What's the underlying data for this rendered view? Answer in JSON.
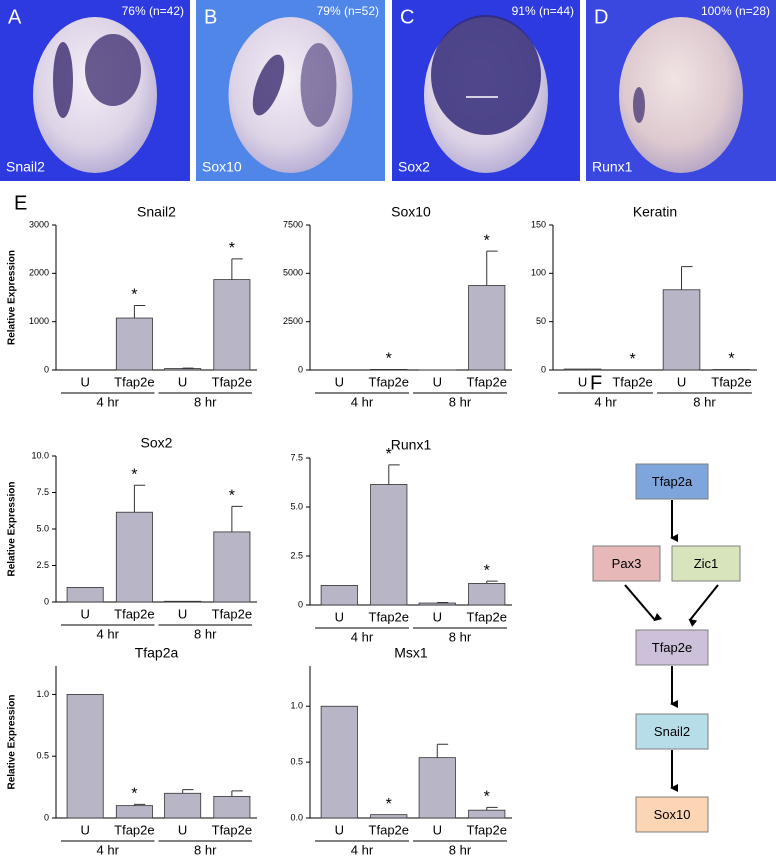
{
  "panels": [
    {
      "letter": "A",
      "stat": "76% (n=42)",
      "marker": "Snail2"
    },
    {
      "letter": "B",
      "stat": "79% (n=52)",
      "marker": "Sox10"
    },
    {
      "letter": "C",
      "stat": "91% (n=44)",
      "marker": "Sox2"
    },
    {
      "letter": "D",
      "stat": "100% (n=28)",
      "marker": "Runx1"
    }
  ],
  "chart_panel_letter": "E",
  "chart_data": [
    {
      "type": "bar",
      "title": "Snail2",
      "ylabel": "Relative Expression",
      "categories": [
        "U",
        "Tfap2e",
        "U",
        "Tfap2e"
      ],
      "groups": [
        "4 hr",
        "8 hr"
      ],
      "values": [
        0,
        1075,
        30,
        1870
      ],
      "errors": [
        null,
        260,
        10,
        430
      ],
      "markers": [
        null,
        "*",
        null,
        "*"
      ],
      "color": "#b8b6c6",
      "ylim": [
        0,
        3000
      ],
      "yticks": [
        0,
        1000,
        2000,
        3000
      ]
    },
    {
      "type": "bar",
      "title": "Sox10",
      "categories": [
        "U",
        "Tfap2e",
        "U",
        "Tfap2e"
      ],
      "groups": [
        "4 hr",
        "8 hr"
      ],
      "values": [
        0,
        30,
        5,
        4370
      ],
      "errors": [
        null,
        null,
        null,
        1780
      ],
      "markers": [
        null,
        "*",
        null,
        "*"
      ],
      "color": "#b8b6c6",
      "ylim": [
        0,
        7500
      ],
      "yticks": [
        0,
        2500,
        5000,
        7500
      ]
    },
    {
      "type": "bar",
      "title": "Keratin",
      "categories": [
        "U",
        "Tfap2e",
        "U",
        "Tfap2e"
      ],
      "groups": [
        "4 hr",
        "8 hr"
      ],
      "values": [
        1,
        0,
        83,
        0.5
      ],
      "errors": [
        null,
        null,
        24,
        null
      ],
      "markers": [
        null,
        "*",
        null,
        "*"
      ],
      "color": "#b8b6c6",
      "ylim": [
        0,
        150
      ],
      "yticks": [
        0,
        50,
        100,
        150
      ]
    },
    {
      "type": "bar",
      "title": "Sox2",
      "ylabel": "Relative Expression",
      "categories": [
        "U",
        "Tfap2e",
        "U",
        "Tfap2e"
      ],
      "groups": [
        "4 hr",
        "8 hr"
      ],
      "values": [
        1,
        6.15,
        0.05,
        4.8
      ],
      "errors": [
        null,
        1.85,
        null,
        1.75
      ],
      "markers": [
        null,
        "*",
        null,
        "*"
      ],
      "color": "#b8b6c6",
      "ylim": [
        0,
        10
      ],
      "yticks": [
        0,
        2.5,
        {
          "value": 5,
          "label": "5.0"
        },
        7.5,
        {
          "value": 10,
          "label": "10.0"
        }
      ]
    },
    {
      "type": "bar",
      "title": "Runx1",
      "categories": [
        "U",
        "Tfap2e",
        "U",
        "Tfap2e"
      ],
      "groups": [
        "4 hr",
        "8 hr"
      ],
      "values": [
        1,
        6.15,
        0.1,
        1.1
      ],
      "errors": [
        null,
        1,
        0.03,
        0.12
      ],
      "markers": [
        null,
        "*",
        null,
        "*"
      ],
      "color": "#b8b6c6",
      "ylim": [
        0,
        7.5
      ],
      "yticks": [
        0,
        2.5,
        {
          "value": 5,
          "label": "5.0"
        },
        7.5
      ]
    },
    {
      "type": "bar",
      "title": "Tfap2a",
      "ylabel": "Relative Expression",
      "categories": [
        "U",
        "Tfap2e",
        "U",
        "Tfap2e"
      ],
      "groups": [
        "4 hr",
        "8 hr"
      ],
      "values": [
        1,
        0.1,
        0.2,
        0.175
      ],
      "errors": [
        null,
        0.01,
        0.03,
        0.045
      ],
      "markers": [
        null,
        "*",
        null,
        null
      ],
      "color": "#b8b6c6",
      "ylim": [
        0,
        1.23
      ],
      "yticks": [
        0,
        0.5,
        {
          "value": 1,
          "label": "1.0"
        }
      ]
    },
    {
      "type": "bar",
      "title": "Msx1",
      "categories": [
        "U",
        "Tfap2e",
        "U",
        "Tfap2e"
      ],
      "groups": [
        "4 hr",
        "8 hr"
      ],
      "values": [
        1,
        0.03,
        0.54,
        0.07
      ],
      "errors": [
        null,
        null,
        0.12,
        0.025
      ],
      "markers": [
        null,
        "*",
        null,
        "*"
      ],
      "color": "#b8b6c6",
      "ylim": [
        0,
        1.36
      ],
      "yticks": [
        {
          "value": 0,
          "label": "0.0"
        },
        0.5,
        {
          "value": 1,
          "label": "1.0"
        }
      ]
    }
  ],
  "diagram": {
    "letter": "F",
    "nodes": [
      {
        "label": "Tfap2a",
        "color": "#7ea6dc"
      },
      {
        "label": "Pax3",
        "color": "#e6b8b7"
      },
      {
        "label": "Zic1",
        "color": "#d7e4bc"
      },
      {
        "label": "Tfap2e",
        "color": "#ccc0da"
      },
      {
        "label": "Snail2",
        "color": "#b7dee8"
      },
      {
        "label": "Sox10",
        "color": "#fcd5b4"
      }
    ]
  }
}
